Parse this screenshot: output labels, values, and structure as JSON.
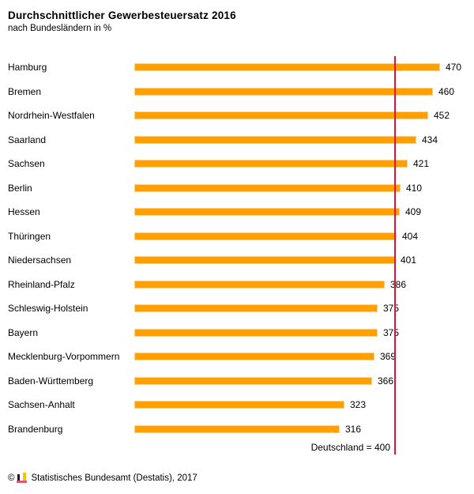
{
  "header": {
    "title": "Durchschnittlicher Gewerbesteuersatz 2016",
    "subtitle": "nach Bundesländern in %"
  },
  "chart_data": {
    "type": "bar",
    "orientation": "horizontal",
    "title": "Durchschnittlicher Gewerbesteuersatz 2016",
    "subtitle": "nach Bundesländern in %",
    "xlabel": "",
    "ylabel": "",
    "xlim": [
      0,
      480
    ],
    "grid": false,
    "categories": [
      "Hamburg",
      "Bremen",
      "Nordrhein-Westfalen",
      "Saarland",
      "Sachsen",
      "Berlin",
      "Hessen",
      "Thüringen",
      "Niedersachsen",
      "Rheinland-Pfalz",
      "Schleswig-Holstein",
      "Bayern",
      "Mecklenburg-Vorpommern",
      "Baden-Württemberg",
      "Sachsen-Anhalt",
      "Brandenburg"
    ],
    "values": [
      470,
      460,
      452,
      434,
      421,
      410,
      409,
      404,
      401,
      386,
      375,
      375,
      369,
      366,
      323,
      316
    ],
    "bar_color": "#FFA000",
    "reference_line": {
      "label": "Deutschland = 400",
      "value": 400,
      "color": "#DC143C"
    }
  },
  "footer": {
    "copyright": "©",
    "logo_icon": "destatis-bar-chart-logo",
    "source": "Statistisches Bundesamt (Destatis), 2017"
  }
}
